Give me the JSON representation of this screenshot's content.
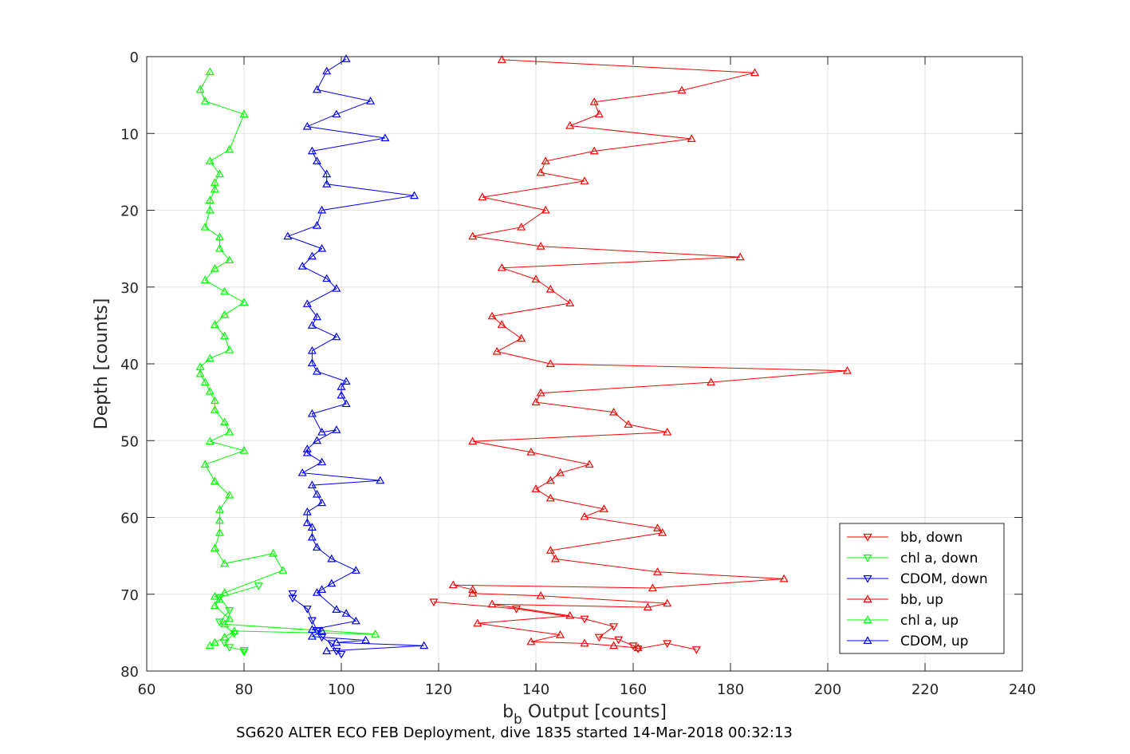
{
  "caption": "SG620 ALTER ECO FEB Deployment, dive 1835 started 14-Mar-2018 00:32:13",
  "chart_data": {
    "type": "line",
    "xlabel_main": "b",
    "xlabel_sub": "b",
    "xlabel_rest": " Output [counts]",
    "ylabel": "Depth [counts]",
    "xlim": [
      60,
      240
    ],
    "ylim": [
      0,
      80
    ],
    "y_reversed": true,
    "grid": true,
    "legend_position": "bottom-right",
    "xticks": [
      "60",
      "80",
      "100",
      "120",
      "140",
      "160",
      "180",
      "200",
      "220",
      "240"
    ],
    "yticks": [
      "0",
      "10",
      "20",
      "30",
      "40",
      "50",
      "60",
      "70",
      "80"
    ],
    "series": [
      {
        "name": "bb, down",
        "color": "#ff0000",
        "marker": "triangle-down",
        "x": [
          119,
          136,
          150,
          156,
          153,
          157,
          160,
          161,
          167,
          173
        ],
        "y": [
          71.0,
          71.9,
          73.2,
          74.2,
          75.6,
          75.9,
          76.7,
          77.1,
          76.4,
          77.2
        ]
      },
      {
        "name": "chl a, down",
        "color": "#00ff00",
        "marker": "triangle-down",
        "x": [
          83,
          75,
          77,
          75,
          78,
          76,
          77,
          80,
          80
        ],
        "y": [
          68.9,
          70.4,
          72.1,
          73.6,
          75.1,
          76.3,
          76.9,
          77.3,
          77.5
        ]
      },
      {
        "name": "CDOM, down",
        "color": "#0000ff",
        "marker": "triangle-down",
        "x": [
          90,
          90,
          93,
          94,
          95,
          96,
          98,
          99,
          100
        ],
        "y": [
          69.9,
          70.5,
          71.9,
          73.4,
          74.7,
          75.6,
          76.4,
          77.4,
          77.8
        ]
      },
      {
        "name": "bb, up",
        "color": "#ff0000",
        "marker": "triangle-up",
        "x": [
          161,
          156,
          150,
          139,
          145,
          128,
          147,
          131,
          163,
          167,
          141,
          127,
          127,
          123,
          164,
          191,
          165,
          144,
          143,
          166,
          165,
          150,
          154,
          143,
          140,
          143,
          145,
          151,
          139,
          127,
          167,
          159,
          156,
          140,
          141,
          176,
          204,
          143,
          132,
          137,
          133,
          131,
          147,
          143,
          140,
          133,
          182,
          141,
          127,
          137,
          142,
          129,
          150,
          141,
          142,
          152,
          172,
          147,
          153,
          152,
          170,
          185,
          133
        ],
        "y": [
          77.0,
          76.7,
          76.4,
          76.2,
          75.3,
          73.8,
          72.8,
          71.3,
          71.7,
          71.2,
          70.2,
          69.9,
          69.4,
          68.8,
          69.2,
          68.0,
          67.1,
          65.4,
          64.3,
          62.0,
          61.4,
          59.9,
          58.9,
          57.5,
          56.3,
          55.2,
          54.2,
          53.1,
          51.5,
          50.1,
          48.9,
          47.9,
          46.3,
          45.0,
          43.8,
          42.4,
          40.9,
          40.0,
          38.4,
          36.7,
          34.9,
          33.8,
          32.1,
          30.3,
          29.0,
          27.5,
          26.1,
          24.7,
          23.4,
          22.2,
          20.0,
          18.3,
          16.2,
          15.1,
          13.6,
          12.3,
          10.7,
          9.0,
          7.5,
          5.9,
          4.4,
          2.1,
          0.4
        ]
      },
      {
        "name": "chl a, up",
        "color": "#00ff00",
        "marker": "triangle-up",
        "x": [
          73,
          74,
          76,
          78,
          107,
          76,
          77,
          74,
          75,
          74,
          76,
          88,
          86,
          76,
          74,
          75,
          75,
          75,
          77,
          74,
          72,
          80,
          73,
          77,
          76,
          74,
          74,
          73,
          72,
          71,
          71,
          73,
          77,
          76,
          74,
          76,
          80,
          76,
          72,
          74,
          77,
          75,
          75,
          72,
          73,
          73,
          74,
          74,
          75,
          73,
          77,
          80,
          72,
          71,
          73
        ],
        "y": [
          76.7,
          76.3,
          75.6,
          74.8,
          75.2,
          73.9,
          73.2,
          71.5,
          70.7,
          70.3,
          69.8,
          66.9,
          64.7,
          66.0,
          64.0,
          62.0,
          60.4,
          59.0,
          57.1,
          55.3,
          53.1,
          51.3,
          50.1,
          48.9,
          47.6,
          46.0,
          44.8,
          43.6,
          42.4,
          41.3,
          40.4,
          39.3,
          38.2,
          36.4,
          34.9,
          33.6,
          32.0,
          30.6,
          29.1,
          27.6,
          26.5,
          25.0,
          23.5,
          22.2,
          20.0,
          18.7,
          17.3,
          16.4,
          15.3,
          13.6,
          12.1,
          7.5,
          5.8,
          4.3,
          2.0
        ]
      },
      {
        "name": "CDOM, up",
        "color": "#0000ff",
        "marker": "triangle-up",
        "x": [
          97,
          117,
          99,
          105,
          94,
          96,
          94,
          103,
          101,
          99,
          95,
          96,
          98,
          103,
          98,
          95,
          94,
          94,
          93,
          93,
          96,
          95,
          94,
          108,
          92,
          96,
          93,
          93,
          95,
          99,
          96,
          94,
          101,
          100,
          100,
          101,
          95,
          94,
          94,
          99,
          94,
          95,
          93,
          99,
          97,
          92,
          94,
          96,
          89,
          95,
          96,
          115,
          97,
          97,
          95,
          94,
          109,
          93,
          99,
          106,
          95,
          97,
          101
        ],
        "y": [
          77.4,
          76.7,
          76.3,
          76.0,
          75.5,
          74.8,
          74.6,
          73.5,
          72.5,
          72.0,
          69.8,
          69.4,
          68.6,
          66.9,
          65.4,
          63.9,
          62.6,
          61.3,
          60.7,
          59.3,
          58.1,
          57.0,
          55.8,
          55.2,
          54.2,
          52.8,
          51.6,
          51.1,
          50.0,
          48.6,
          48.9,
          46.5,
          45.2,
          44.1,
          43.0,
          42.3,
          41.0,
          39.9,
          38.3,
          36.5,
          35.0,
          33.9,
          32.2,
          30.2,
          28.9,
          27.3,
          26.0,
          25.0,
          23.4,
          22.0,
          20.0,
          18.1,
          16.6,
          15.3,
          13.6,
          12.3,
          10.6,
          9.1,
          7.5,
          5.8,
          4.3,
          1.9,
          0.3
        ]
      }
    ]
  }
}
